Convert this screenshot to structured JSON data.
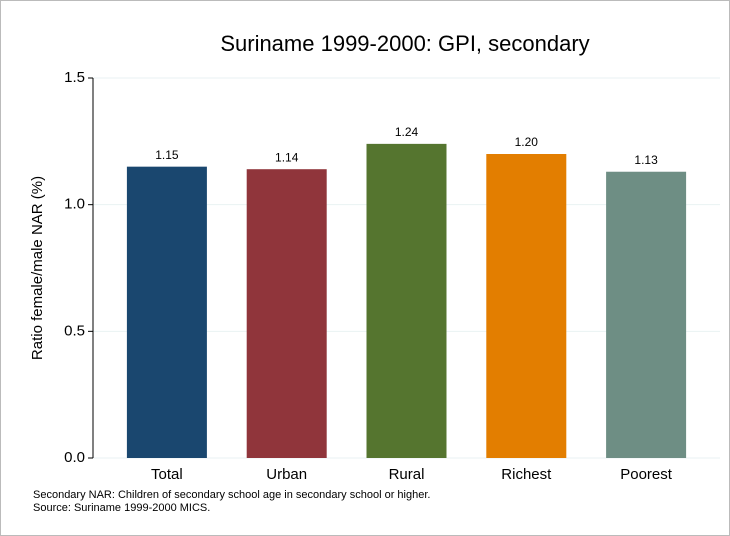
{
  "chart_data": {
    "type": "bar",
    "title": "Suriname 1999-2000: GPI, secondary",
    "y_label": "Ratio female/male NAR (%)",
    "categories": [
      "Total",
      "Urban",
      "Rural",
      "Richest",
      "Poorest"
    ],
    "values": [
      1.15,
      1.14,
      1.24,
      1.2,
      1.13
    ],
    "value_labels": [
      "1.15",
      "1.14",
      "1.24",
      "1.20",
      "1.13"
    ],
    "colors": [
      "#1a476f",
      "#90353b",
      "#55752f",
      "#e37e00",
      "#6e8e84"
    ],
    "ylim": [
      0,
      1.5
    ],
    "yticks": [
      {
        "value": 0,
        "label": "0.0"
      },
      0.5,
      {
        "value": 1,
        "label": "1.0"
      },
      1.5
    ],
    "grid": true,
    "notes": [
      "Secondary NAR: Children of secondary school age in secondary school or higher.",
      "Source: Suriname 1999-2000 MICS."
    ]
  }
}
